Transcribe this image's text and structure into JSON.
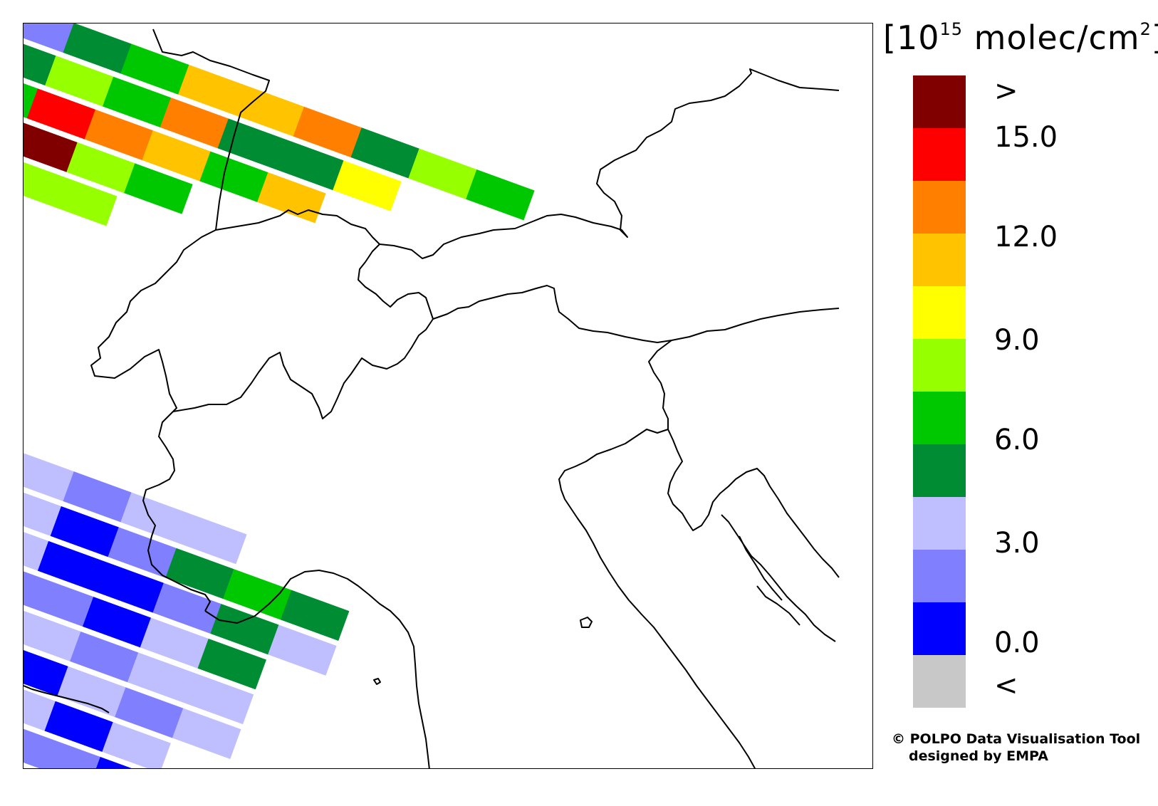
{
  "map": {
    "description_free": true,
    "swath_gap_color": "#ffffff",
    "swaths": [
      {
        "region": "north",
        "rows": [
          [
            "#8080ff",
            "#008c33",
            "#00c800",
            "#ffc300",
            "#ffc300",
            "#ff7f00",
            "#008c33",
            "#96ff00",
            "#00c800"
          ],
          [
            "#008c33",
            "#96ff00",
            "#00c800",
            "#ff7f00",
            "#008c33",
            "#008c33",
            "#ffff00"
          ],
          [
            "#00c800",
            "#ff0000",
            "#ff7f00",
            "#ffc300",
            "#00c800",
            "#ffc300"
          ],
          [
            "#ff7f00",
            "#800000",
            "#96ff00",
            "#00c800"
          ],
          [
            "#96ff00",
            "#96ff00",
            "#96ff00"
          ]
        ]
      },
      {
        "region": "south",
        "rows": [
          [
            "#bfbfff",
            "#8080ff",
            "#bfbfff",
            "#bfbfff"
          ],
          [
            "#bfbfff",
            "#0000ff",
            "#8080ff",
            "#008c33",
            "#00c800",
            "#008c33"
          ],
          [
            "#bfbfff",
            "#0000ff",
            "#0000ff",
            "#8080ff",
            "#008c33",
            "#bfbfff"
          ],
          [
            "#8080ff",
            "#8080ff",
            "#0000ff",
            "#bfbfff",
            "#008c33"
          ],
          [
            "#8080ff",
            "#bfbfff",
            "#8080ff",
            "#bfbfff",
            "#bfbfff"
          ],
          [
            "#8080ff",
            "#0000ff",
            "#bfbfff",
            "#8080ff",
            "#bfbfff"
          ],
          [
            "#bfbfff",
            "#bfbfff",
            "#0000ff",
            "#bfbfff"
          ],
          [
            "#8080ff",
            "#8080ff",
            "#8080ff",
            "#0000ff"
          ]
        ]
      }
    ]
  },
  "legend": {
    "unit_prefix": "[10",
    "unit_exp": "15",
    "unit_mid": " molec/cm",
    "unit_exp2": "2",
    "unit_suffix": "]",
    "colors": [
      "#800000",
      "#ff0000",
      "#ff7f00",
      "#ffc300",
      "#ffff00",
      "#96ff00",
      "#00c800",
      "#008c33",
      "#bfbfff",
      "#8080ff",
      "#0000ff",
      "#c8c8c8"
    ],
    "tick_labels": [
      ">",
      "15.0",
      "12.0",
      "9.0",
      "6.0",
      "3.0",
      "0.0",
      "<"
    ]
  },
  "credit": {
    "line1": "© POLPO Data Visualisation Tool",
    "line2": "designed by EMPA"
  }
}
